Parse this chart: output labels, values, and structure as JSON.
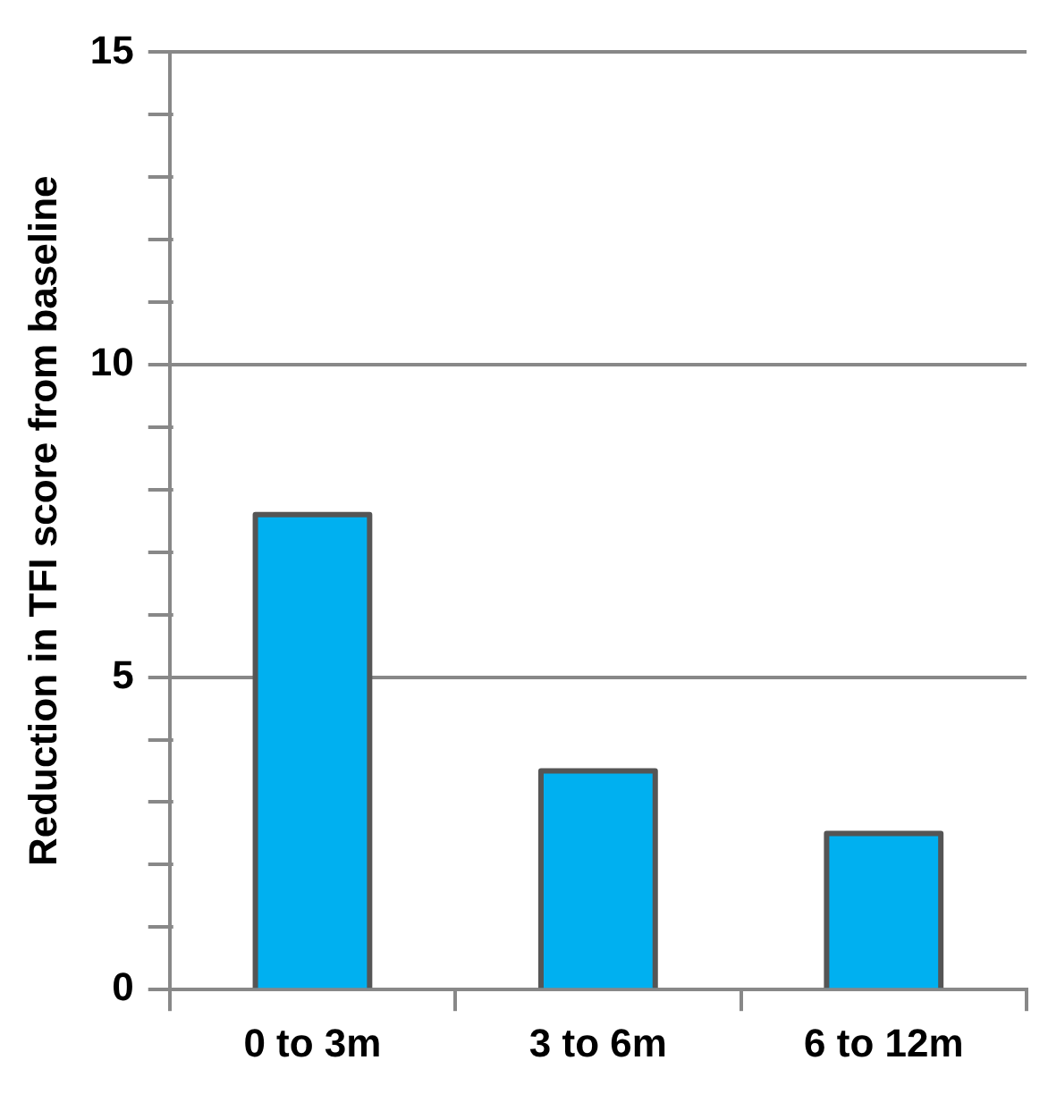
{
  "chart_data": {
    "type": "bar",
    "ylabel": "Reduction in TFI score from baseline",
    "categories": [
      "0 to 3m",
      "3 to 6m",
      "6 to 12m"
    ],
    "values": [
      7.6,
      3.5,
      2.5
    ],
    "color": "#00b0f0",
    "ylim": [
      0,
      15
    ],
    "yticks": [
      0,
      {
        "value": 1,
        "label": null
      },
      {
        "value": 2,
        "label": null
      },
      {
        "value": 3,
        "label": null
      },
      {
        "value": 4,
        "label": null
      },
      5,
      {
        "value": 6,
        "label": null
      },
      {
        "value": 7,
        "label": null
      },
      {
        "value": 8,
        "label": null
      },
      {
        "value": 9,
        "label": null
      },
      10,
      {
        "value": 11,
        "label": null
      },
      {
        "value": 12,
        "label": null
      },
      {
        "value": 13,
        "label": null
      },
      {
        "value": 14,
        "label": null
      },
      15
    ],
    "grid": "y"
  }
}
